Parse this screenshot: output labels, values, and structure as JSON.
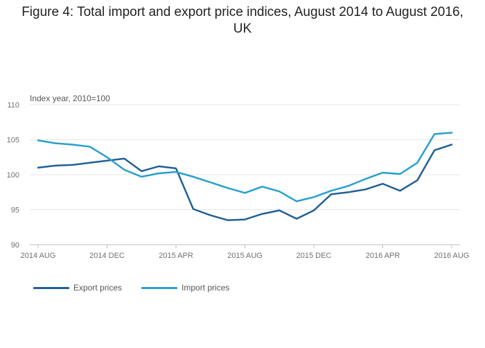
{
  "chart_data": {
    "type": "line",
    "title": "Figure 4: Total import and export price indices, August 2014 to August 2016, UK",
    "ylabel": "Index year, 2010=100",
    "xlabel": "",
    "ylim": [
      90,
      110
    ],
    "yticks": [
      90,
      95,
      100,
      105,
      110
    ],
    "x": [
      "2014 AUG",
      "2014 SEP",
      "2014 OCT",
      "2014 NOV",
      "2014 DEC",
      "2015 JAN",
      "2015 FEB",
      "2015 MAR",
      "2015 APR",
      "2015 MAY",
      "2015 JUN",
      "2015 JUL",
      "2015 AUG",
      "2015 SEP",
      "2015 OCT",
      "2015 NOV",
      "2015 DEC",
      "2016 JAN",
      "2016 FEB",
      "2016 MAR",
      "2016 APR",
      "2016 MAY",
      "2016 JUN",
      "2016 JUL",
      "2016 AUG"
    ],
    "xtick_labels": [
      {
        "index": 0,
        "label": "2014 AUG"
      },
      {
        "index": 4,
        "label": "2014 DEC"
      },
      {
        "index": 8,
        "label": "2015 APR"
      },
      {
        "index": 12,
        "label": "2015 AUG"
      },
      {
        "index": 16,
        "label": "2015 DEC"
      },
      {
        "index": 20,
        "label": "2016 APR"
      },
      {
        "index": 24,
        "label": "2016 AUG"
      }
    ],
    "series": [
      {
        "name": "Export prices",
        "color": "#206095",
        "values": [
          101.0,
          101.3,
          101.4,
          101.7,
          102.0,
          102.3,
          100.5,
          101.2,
          100.9,
          95.1,
          94.2,
          93.5,
          93.6,
          94.4,
          94.9,
          93.7,
          94.9,
          97.2,
          97.5,
          97.9,
          98.7,
          97.7,
          99.2,
          103.5,
          104.3
        ]
      },
      {
        "name": "Import prices",
        "color": "#27A0CC",
        "values": [
          104.9,
          104.5,
          104.3,
          104.0,
          102.5,
          100.7,
          99.7,
          100.2,
          100.4,
          99.7,
          98.9,
          98.1,
          97.4,
          98.3,
          97.6,
          96.2,
          96.8,
          97.7,
          98.4,
          99.4,
          100.3,
          100.1,
          101.7,
          105.8,
          106.0
        ]
      }
    ],
    "grid": true,
    "legend_position": "bottom-left"
  }
}
